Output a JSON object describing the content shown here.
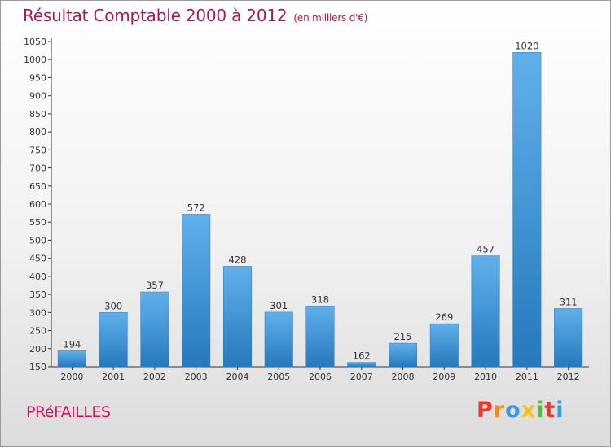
{
  "header": {
    "title": "Résultat Comptable 2000 à 2012",
    "subtitle": "(en milliers d'€)"
  },
  "commune": "PRéFAILLES",
  "logo": {
    "text": "Proxiti",
    "letters": [
      "P",
      "r",
      "o",
      "x",
      "i",
      "t",
      "i"
    ],
    "colors": [
      "#e8392e",
      "#f08a1c",
      "#3a9ad9",
      "#f3c21b",
      "#59b947",
      "#e8392e",
      "#3a9ad9"
    ]
  },
  "colors": {
    "bar_top": "#5fb0ea",
    "bar_bottom": "#2779bd",
    "title": "#b0174f",
    "axis": "#333333"
  },
  "chart_data": {
    "type": "bar",
    "title": "Résultat Comptable 2000 à 2012",
    "subtitle": "(en milliers d'€)",
    "xlabel": "",
    "ylabel": "",
    "categories": [
      "2000",
      "2001",
      "2002",
      "2003",
      "2004",
      "2005",
      "2006",
      "2007",
      "2008",
      "2009",
      "2010",
      "2011",
      "2012"
    ],
    "values": [
      194,
      300,
      357,
      572,
      428,
      301,
      318,
      162,
      215,
      269,
      457,
      1020,
      311
    ],
    "ylim": [
      150,
      1050
    ],
    "yticks": [
      150,
      200,
      250,
      300,
      350,
      400,
      450,
      500,
      550,
      600,
      650,
      700,
      750,
      800,
      850,
      900,
      950,
      1000,
      1050
    ],
    "grid": false,
    "legend": "none"
  }
}
